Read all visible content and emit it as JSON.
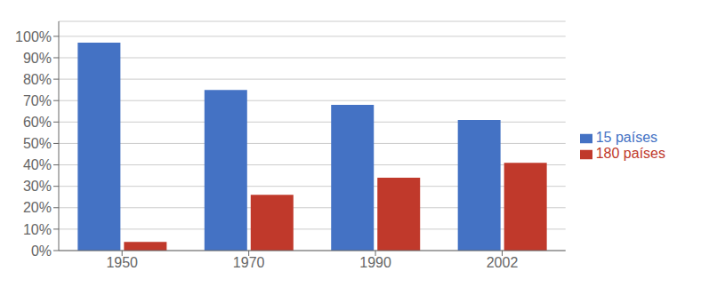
{
  "chart_data": {
    "type": "bar",
    "categories": [
      "1950",
      "1970",
      "1990",
      "2002"
    ],
    "series": [
      {
        "name": "15 países",
        "color": "#4472c4",
        "values": [
          97,
          75,
          68,
          61
        ]
      },
      {
        "name": "180 países",
        "color": "#c0392b",
        "values": [
          4,
          26,
          34,
          41
        ]
      }
    ],
    "ylim": [
      0,
      107
    ],
    "yticks": [
      {
        "value": 0,
        "label": "0%"
      },
      {
        "value": 10,
        "label": "10%"
      },
      {
        "value": 20,
        "label": "20%"
      },
      {
        "value": 30,
        "label": "30%"
      },
      {
        "value": 40,
        "label": "40%"
      },
      {
        "value": 50,
        "label": "50%"
      },
      {
        "value": 60,
        "label": "60%"
      },
      {
        "value": 70,
        "label": "70%"
      },
      {
        "value": 80,
        "label": "80%"
      },
      {
        "value": 90,
        "label": "90%"
      },
      {
        "value": 100,
        "label": "100%"
      }
    ],
    "grid": true,
    "legend": "right"
  }
}
